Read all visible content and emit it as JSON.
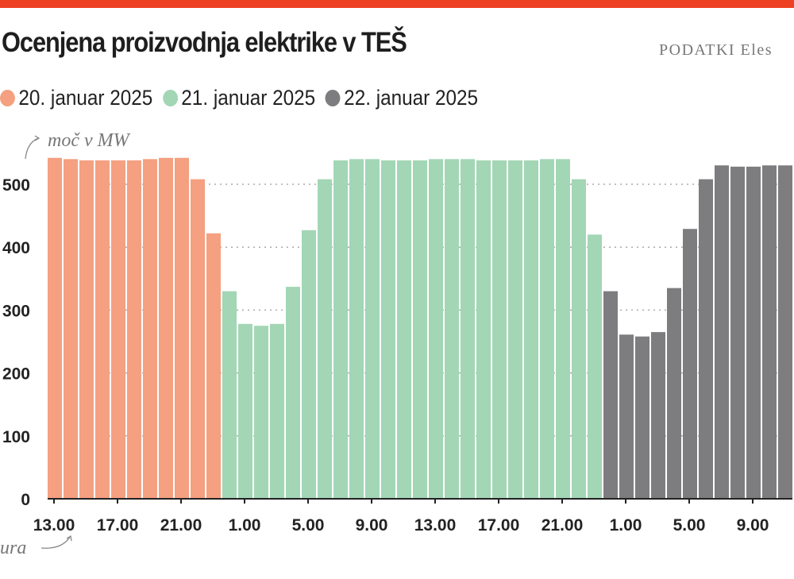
{
  "header": {
    "title": "Ocenjena proizvodnja elektrike v TEŠ",
    "source": "PODATKI Eles"
  },
  "colors": {
    "accent": "#ee4022",
    "day1": "#f4a081",
    "day2": "#a3d6b5",
    "day3": "#7d7d80"
  },
  "chart_data": {
    "type": "bar",
    "title": "Ocenjena proizvodnja elektrike v TEŠ",
    "ylabel": "moč v MW",
    "xlabel": "ura",
    "ylim": [
      0,
      550
    ],
    "yticks": [
      0,
      100,
      200,
      300,
      400,
      500
    ],
    "xtick_labels": [
      "13.00",
      "17.00",
      "21.00",
      "1.00",
      "5.00",
      "9.00",
      "13.00",
      "17.00",
      "21.00",
      "1.00",
      "5.00",
      "9.00"
    ],
    "legend_position": "top-left",
    "series": [
      {
        "name": "20. januar 2025",
        "hours": [
          13,
          14,
          15,
          16,
          17,
          18,
          19,
          20,
          21,
          22,
          23
        ],
        "values": [
          542,
          540,
          538,
          538,
          538,
          538,
          540,
          542,
          542,
          508,
          422
        ]
      },
      {
        "name": "21. januar 2025",
        "hours": [
          0,
          1,
          2,
          3,
          4,
          5,
          6,
          7,
          8,
          9,
          10,
          11,
          12,
          13,
          14,
          15,
          16,
          17,
          18,
          19,
          20,
          21,
          22,
          23
        ],
        "values": [
          330,
          278,
          275,
          278,
          337,
          427,
          508,
          538,
          540,
          540,
          538,
          538,
          538,
          540,
          540,
          540,
          538,
          538,
          538,
          538,
          540,
          540,
          508,
          420
        ]
      },
      {
        "name": "22. januar 2025",
        "hours": [
          0,
          1,
          2,
          3,
          4,
          5,
          6,
          7,
          8,
          9,
          10,
          11
        ],
        "values": [
          330,
          261,
          258,
          265,
          335,
          429,
          508,
          530,
          528,
          528,
          530,
          530
        ]
      }
    ]
  }
}
